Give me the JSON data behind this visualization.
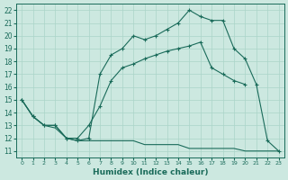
{
  "xlabel": "Humidex (Indice chaleur)",
  "xlim": [
    -0.5,
    23.5
  ],
  "ylim": [
    10.5,
    22.5
  ],
  "xticks": [
    0,
    1,
    2,
    3,
    4,
    5,
    6,
    7,
    8,
    9,
    10,
    11,
    12,
    13,
    14,
    15,
    16,
    17,
    18,
    19,
    20,
    21,
    22,
    23
  ],
  "yticks": [
    11,
    12,
    13,
    14,
    15,
    16,
    17,
    18,
    19,
    20,
    21,
    22
  ],
  "bg_color": "#cce8e0",
  "line_color": "#1a6b5a",
  "grid_color": "#aad4c8",
  "line1_x": [
    0,
    1,
    2,
    3,
    4,
    5,
    6,
    7,
    8,
    9,
    10,
    11,
    12,
    13,
    14,
    15,
    16,
    17,
    18,
    19,
    20,
    21,
    22,
    23
  ],
  "line1_y": [
    15.0,
    13.7,
    13.0,
    12.8,
    12.0,
    11.8,
    11.8,
    11.8,
    11.8,
    11.8,
    11.8,
    11.5,
    11.5,
    11.5,
    11.5,
    11.2,
    11.2,
    11.2,
    11.2,
    11.2,
    11.0,
    11.0,
    11.0,
    11.0
  ],
  "line2_x": [
    0,
    1,
    2,
    3,
    4,
    5,
    6,
    7,
    8,
    9,
    10,
    11,
    12,
    13,
    14,
    15,
    16,
    17,
    18,
    19,
    20
  ],
  "line2_y": [
    15.0,
    13.7,
    13.0,
    13.0,
    12.0,
    12.0,
    13.0,
    14.5,
    16.5,
    17.5,
    17.8,
    18.2,
    18.5,
    18.8,
    19.0,
    19.2,
    19.5,
    17.5,
    17.0,
    16.5,
    16.2
  ],
  "line3_x": [
    0,
    1,
    2,
    3,
    4,
    5,
    6,
    7,
    8,
    9,
    10,
    11,
    12,
    13,
    14,
    15,
    16,
    17,
    18,
    19,
    20,
    21,
    22,
    23
  ],
  "line3_y": [
    15.0,
    13.7,
    13.0,
    13.0,
    12.0,
    11.8,
    12.0,
    17.0,
    18.5,
    19.0,
    20.0,
    19.7,
    20.0,
    20.5,
    21.0,
    22.0,
    21.5,
    21.2,
    21.2,
    19.0,
    18.2,
    16.2,
    11.8,
    11.0
  ]
}
